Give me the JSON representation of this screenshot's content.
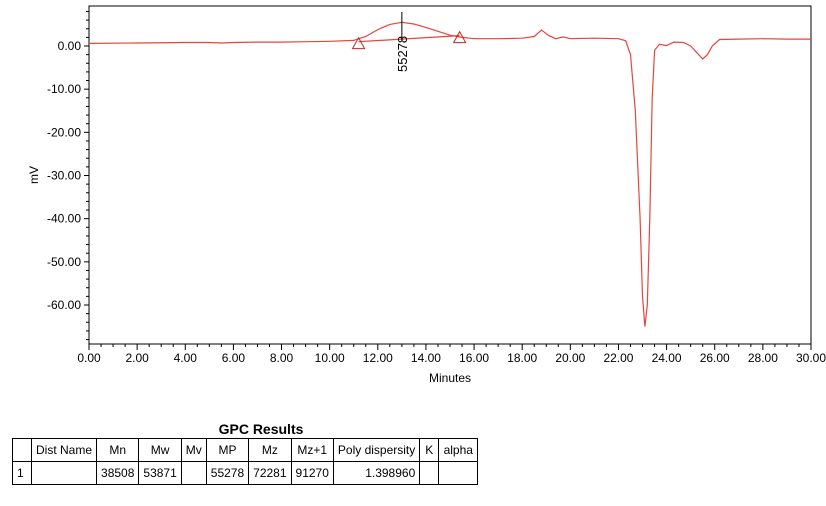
{
  "chart_data": {
    "type": "line",
    "xlabel": "Minutes",
    "ylabel": "mV",
    "xlim": [
      0,
      30
    ],
    "ylim": [
      -70,
      9.5
    ],
    "xticks": [
      "0.00",
      "2.00",
      "4.00",
      "6.00",
      "8.00",
      "10.00",
      "12.00",
      "14.00",
      "16.00",
      "18.00",
      "20.00",
      "22.00",
      "24.00",
      "26.00",
      "28.00",
      "30.00"
    ],
    "yticks": [
      "0.00",
      "-10.00",
      "-20.00",
      "-30.00",
      "-40.00",
      "-50.00",
      "-60.00"
    ],
    "series": [
      {
        "color": "#e8443c",
        "x": [
          0,
          2,
          4,
          5,
          5.5,
          6,
          7,
          8,
          9,
          10,
          11,
          11.5,
          12,
          12.5,
          13,
          13.5,
          14,
          14.5,
          15,
          15.5,
          16,
          17,
          18,
          18.5,
          18.8,
          19.1,
          19.4,
          19.7,
          20,
          21,
          22,
          22.3,
          22.5,
          22.7,
          22.9,
          23,
          23.1,
          23.2,
          23.3,
          23.4,
          23.5,
          23.7,
          24,
          24.3,
          24.7,
          25,
          25.3,
          25.5,
          25.7,
          25.9,
          26.2,
          27,
          28,
          29,
          30
        ],
        "y": [
          0.6,
          0.7,
          0.8,
          0.8,
          0.7,
          0.8,
          0.9,
          0.9,
          1,
          1.1,
          1.3,
          2.2,
          3.8,
          5,
          5.5,
          5.1,
          4.3,
          3.4,
          2.5,
          2,
          1.7,
          1.7,
          1.8,
          2.2,
          3.7,
          2.4,
          1.7,
          2.1,
          1.7,
          1.8,
          1.7,
          1.2,
          -2,
          -15,
          -40,
          -58,
          -65,
          -60,
          -40,
          -12,
          -1,
          0.4,
          0.1,
          0.9,
          0.8,
          0,
          -1.8,
          -3,
          -2,
          0,
          1.5,
          1.6,
          1.7,
          1.6,
          1.6
        ]
      },
      {
        "color": "#e8443c",
        "x": [
          11.2,
          15.4
        ],
        "y": [
          1.0,
          2.4
        ]
      }
    ],
    "peak_label": "55278",
    "peak_x": 13.0,
    "markers_x": [
      11.2,
      15.4
    ],
    "markers_y": [
      1.0,
      2.4
    ]
  },
  "table": {
    "title": "GPC Results",
    "headers": [
      "",
      "Dist Name",
      "Mn",
      "Mw",
      "Mv",
      "MP",
      "Mz",
      "Mz+1",
      "Poly dispersity",
      "K",
      "alpha"
    ],
    "rows": [
      [
        "1",
        "",
        "38508",
        "53871",
        "",
        "55278",
        "72281",
        "91270",
        "1.398960",
        "",
        ""
      ]
    ]
  }
}
